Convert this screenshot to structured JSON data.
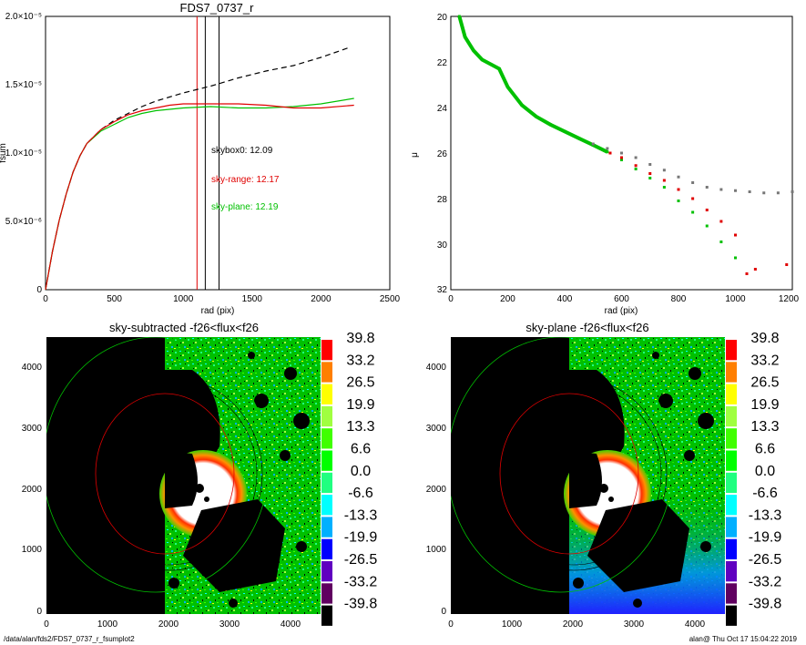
{
  "footer": {
    "path": "/data/alan/fds2/FDS7_0737_r_fsumplot2",
    "stamp": "alan@  Thu Oct 17 15:04:22 2019"
  },
  "chart_data": [
    {
      "type": "line",
      "title": "FDS7_0737_r",
      "xlabel": "rad (pix)",
      "ylabel": "fsum",
      "xlim": [
        0,
        2500
      ],
      "ylim": [
        0,
        2e-05
      ],
      "xticks": [
        "0",
        "500",
        "1000",
        "1500",
        "2000",
        "2500"
      ],
      "yticks": [
        "0",
        "5.0×10⁻⁶",
        "1.0×10⁻⁵",
        "1.5×10⁻⁵",
        "2.0×10⁻⁵"
      ],
      "vlines": [
        {
          "x": 1100,
          "color": "#e00000"
        },
        {
          "x": 1160,
          "color": "#000000"
        },
        {
          "x": 1260,
          "color": "#000000"
        }
      ],
      "annotations": [
        {
          "text": "skybox0: 12.09",
          "color": "#000000"
        },
        {
          "text": "sky-range: 12.17",
          "color": "#e00000"
        },
        {
          "text": "sky-plane: 12.19",
          "color": "#00c000"
        }
      ],
      "series": [
        {
          "color": "#000000",
          "dash": true,
          "x": [
            0,
            50,
            100,
            150,
            200,
            250,
            300,
            400,
            500,
            600,
            700,
            800,
            900,
            1000,
            1200,
            1400,
            1600,
            1800,
            2000,
            2200
          ],
          "y": [
            0,
            2.8e-06,
            5.1e-06,
            7e-06,
            8.6e-06,
            9.8e-06,
            1.07e-05,
            1.17e-05,
            1.24e-05,
            1.29e-05,
            1.34e-05,
            1.38e-05,
            1.41e-05,
            1.44e-05,
            1.49e-05,
            1.55e-05,
            1.6e-05,
            1.64e-05,
            1.7e-05,
            1.77e-05
          ]
        },
        {
          "color": "#00c000",
          "dash": false,
          "x": [
            0,
            50,
            100,
            150,
            200,
            250,
            300,
            400,
            500,
            600,
            700,
            800,
            900,
            1000,
            1200,
            1400,
            1600,
            1800,
            2000,
            2240
          ],
          "y": [
            0,
            2.8e-06,
            5.1e-06,
            7e-06,
            8.6e-06,
            9.8e-06,
            1.07e-05,
            1.16e-05,
            1.21e-05,
            1.26e-05,
            1.29e-05,
            1.31e-05,
            1.32e-05,
            1.33e-05,
            1.34e-05,
            1.33e-05,
            1.33e-05,
            1.34e-05,
            1.36e-05,
            1.4e-05
          ]
        },
        {
          "color": "#e00000",
          "dash": false,
          "x": [
            0,
            50,
            100,
            150,
            200,
            250,
            300,
            400,
            500,
            600,
            700,
            800,
            900,
            1000,
            1200,
            1400,
            1600,
            1800,
            2000,
            2240
          ],
          "y": [
            0,
            2.8e-06,
            5.1e-06,
            7e-06,
            8.6e-06,
            9.8e-06,
            1.07e-05,
            1.17e-05,
            1.23e-05,
            1.28e-05,
            1.31e-05,
            1.33e-05,
            1.35e-05,
            1.36e-05,
            1.36e-05,
            1.36e-05,
            1.35e-05,
            1.33e-05,
            1.33e-05,
            1.35e-05
          ]
        }
      ]
    },
    {
      "type": "scatter",
      "xlabel": "rad (pix)",
      "ylabel": "μ",
      "xlim": [
        0,
        1200
      ],
      "ylim": [
        20,
        32
      ],
      "y_inverted": true,
      "xticks": [
        "0",
        "200",
        "400",
        "600",
        "800",
        "1000",
        "1200"
      ],
      "yticks": [
        "20",
        "22",
        "24",
        "26",
        "28",
        "30",
        "32"
      ],
      "series": [
        {
          "color": "#00c000",
          "x": [
            30,
            50,
            80,
            110,
            140,
            170,
            200,
            250,
            300,
            350,
            400,
            450,
            500,
            550,
            600,
            650,
            700,
            750,
            800,
            850,
            900,
            950,
            1000
          ],
          "y": [
            20.0,
            20.9,
            21.5,
            21.9,
            22.1,
            22.3,
            23.1,
            23.9,
            24.4,
            24.75,
            25.05,
            25.35,
            25.65,
            25.95,
            26.3,
            26.7,
            27.1,
            27.5,
            28.1,
            28.6,
            29.2,
            29.9,
            30.6
          ]
        },
        {
          "color": "#e00000",
          "x": [
            560,
            600,
            650,
            700,
            750,
            800,
            850,
            900,
            950,
            1000,
            1040,
            1070,
            1180
          ],
          "y": [
            26.0,
            26.2,
            26.55,
            26.9,
            27.2,
            27.6,
            28.0,
            28.5,
            29.0,
            29.6,
            31.3,
            31.1,
            30.9
          ]
        },
        {
          "color": "#777777",
          "x": [
            500,
            550,
            600,
            650,
            700,
            750,
            800,
            850,
            900,
            950,
            1000,
            1050,
            1100,
            1150,
            1200
          ],
          "y": [
            25.6,
            25.8,
            26.0,
            26.2,
            26.5,
            26.75,
            27.05,
            27.3,
            27.5,
            27.6,
            27.65,
            27.7,
            27.75,
            27.75,
            27.7
          ]
        }
      ]
    },
    {
      "type": "heatmap",
      "title": "sky-subtracted -f26<flux<f26",
      "xlim": [
        0,
        4500
      ],
      "ylim": [
        0,
        4500
      ],
      "xticks": [
        "0",
        "1000",
        "2000",
        "3000",
        "4000"
      ],
      "yticks": [
        "0",
        "1000",
        "2000",
        "3000",
        "4000"
      ],
      "colorbar": [
        "39.8",
        "33.2",
        "26.5",
        "19.9",
        "13.3",
        "6.6",
        "0.0",
        "-6.6",
        "-13.3",
        "-19.9",
        "-26.5",
        "-33.2",
        "-39.8"
      ]
    },
    {
      "type": "heatmap",
      "title": "sky-plane -f26<flux<f26",
      "xlim": [
        0,
        4500
      ],
      "ylim": [
        0,
        4500
      ],
      "xticks": [
        "0",
        "1000",
        "2000",
        "3000",
        "4000"
      ],
      "yticks": [
        "0",
        "1000",
        "2000",
        "3000",
        "4000"
      ],
      "colorbar": [
        "39.8",
        "33.2",
        "26.5",
        "19.9",
        "13.3",
        "6.6",
        "0.0",
        "-6.6",
        "-13.3",
        "-19.9",
        "-26.5",
        "-33.2",
        "-39.8"
      ]
    }
  ],
  "colors": {
    "colorbar": [
      "#ff0000",
      "#ff7f00",
      "#ffff00",
      "#a0ff40",
      "#40ff00",
      "#00ff00",
      "#20ff80",
      "#00ffff",
      "#00b0ff",
      "#0000ff",
      "#6000c0",
      "#600060",
      "#000000"
    ]
  }
}
